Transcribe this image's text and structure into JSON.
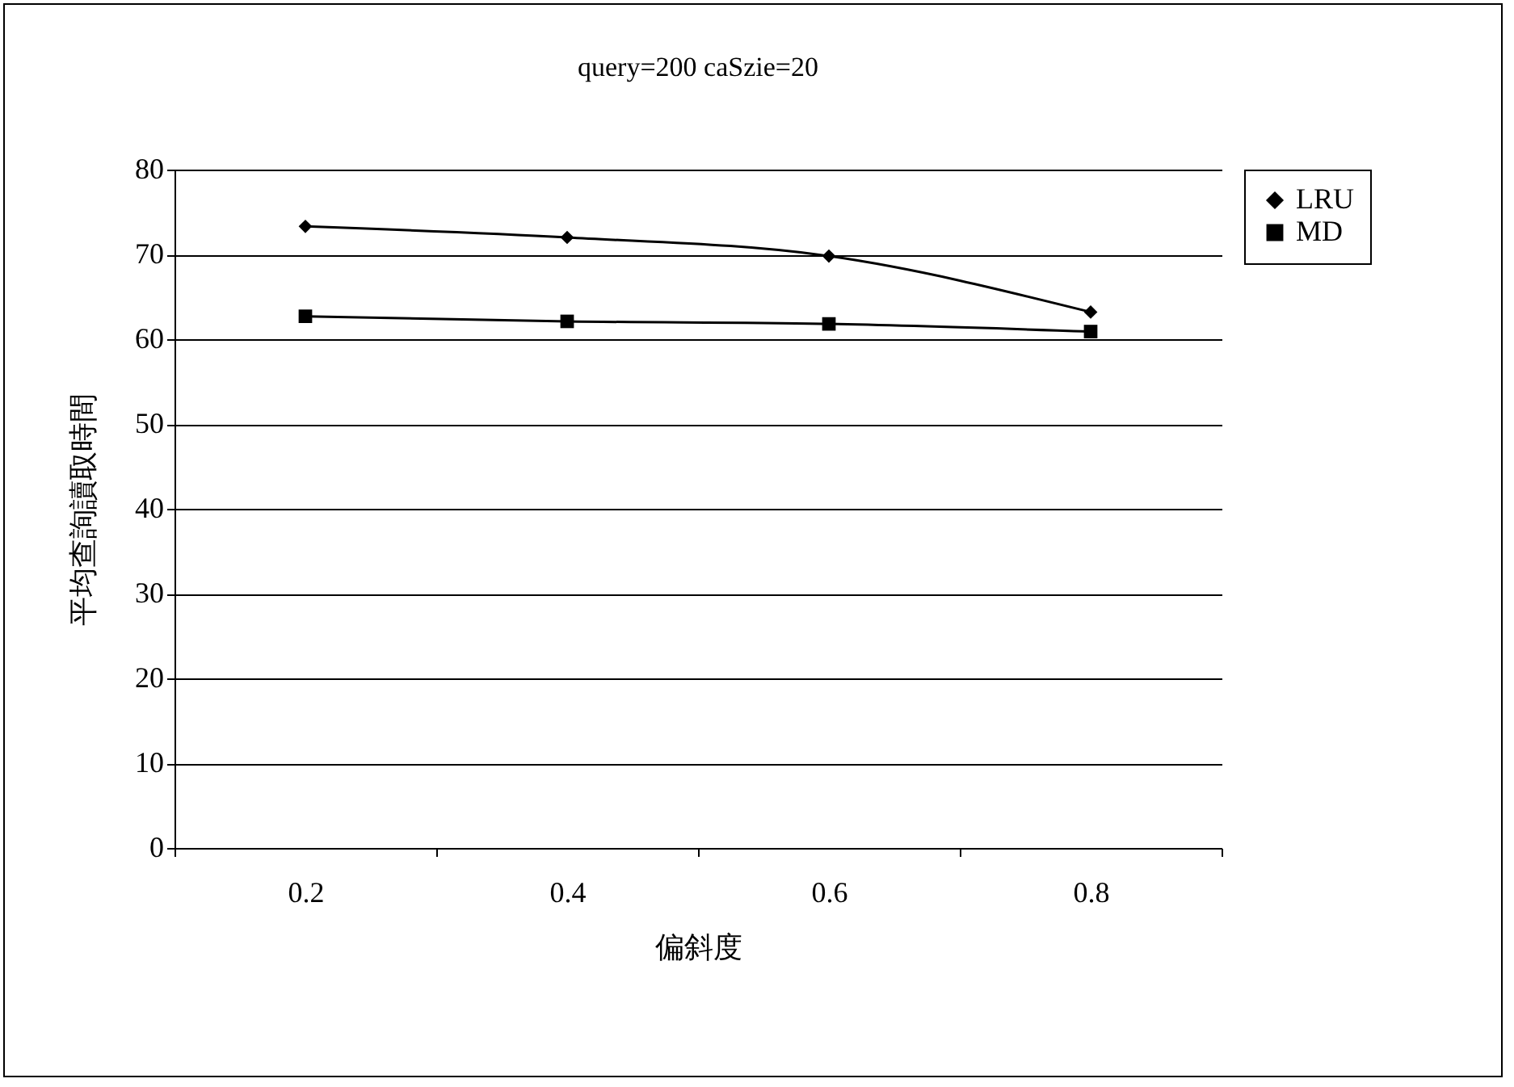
{
  "chart_data": {
    "type": "line",
    "title": "query=200 caSzie=20",
    "xlabel": "偏斜度",
    "ylabel": "平均查詢讀取時間",
    "categories": [
      "0.2",
      "0.4",
      "0.6",
      "0.8"
    ],
    "series": [
      {
        "name": "LRU",
        "color": "#000000",
        "marker": "diamond",
        "values": [
          73.3,
          72.0,
          69.8,
          63.2
        ]
      },
      {
        "name": "MD",
        "color": "#000000",
        "marker": "square",
        "values": [
          62.7,
          62.1,
          61.8,
          60.9
        ]
      }
    ],
    "ylim": [
      0,
      80
    ],
    "yticks": [
      0,
      10,
      20,
      30,
      40,
      50,
      60,
      70,
      80
    ],
    "grid": "y",
    "legend": "right",
    "line_style": "solid"
  }
}
